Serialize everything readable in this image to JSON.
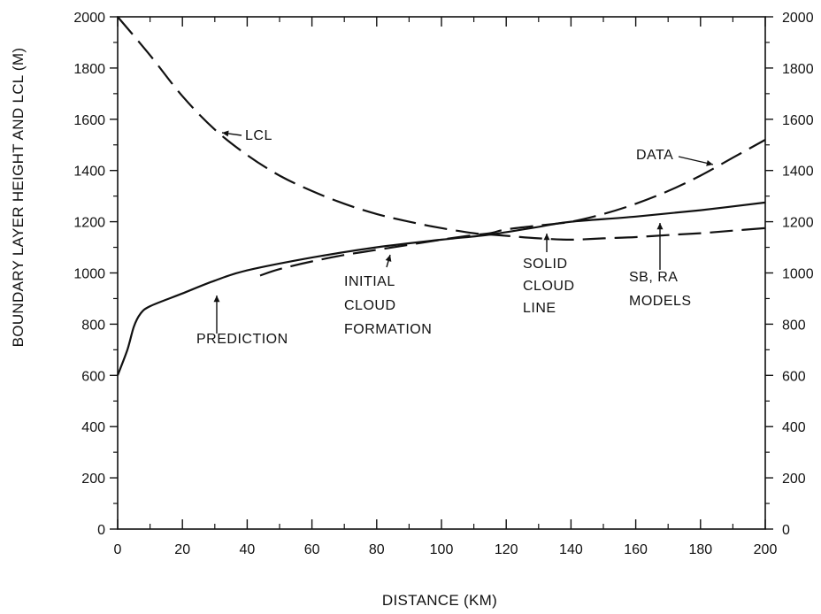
{
  "chart_data": {
    "type": "line",
    "title": "",
    "xlabel": "DISTANCE (KM)",
    "ylabel": "BOUNDARY LAYER HEIGHT AND LCL (M)",
    "xlim": [
      0,
      200
    ],
    "ylim": [
      0,
      2000
    ],
    "x_ticks": [
      0,
      20,
      40,
      60,
      80,
      100,
      120,
      140,
      160,
      180,
      200
    ],
    "y_ticks": [
      0,
      200,
      400,
      600,
      800,
      1000,
      1200,
      1400,
      1600,
      1800,
      2000
    ],
    "grid": false,
    "legend": "none",
    "series": [
      {
        "name": "LCL",
        "style": "dashed",
        "x": [
          0,
          10,
          20,
          30,
          40,
          50,
          60,
          70,
          80,
          90,
          100,
          110,
          115,
          120,
          130,
          140,
          150,
          160,
          170,
          180,
          190,
          200
        ],
        "y": [
          2000,
          1850,
          1690,
          1560,
          1460,
          1380,
          1320,
          1270,
          1230,
          1200,
          1175,
          1155,
          1150,
          1145,
          1135,
          1130,
          1135,
          1140,
          1148,
          1155,
          1165,
          1175
        ]
      },
      {
        "name": "PREDICTION",
        "style": "solid",
        "x": [
          0,
          3,
          5,
          7,
          10,
          20,
          30,
          40,
          60,
          80,
          100,
          115,
          130,
          140,
          160,
          180,
          200
        ],
        "y": [
          600,
          700,
          790,
          840,
          870,
          920,
          970,
          1010,
          1060,
          1100,
          1130,
          1150,
          1180,
          1200,
          1220,
          1245,
          1275
        ]
      },
      {
        "name": "DATA",
        "style": "dashed",
        "x": [
          44,
          50,
          60,
          70,
          80,
          90,
          100,
          110,
          115,
          120,
          130,
          140,
          150,
          160,
          170,
          180,
          190,
          200
        ],
        "y": [
          990,
          1015,
          1045,
          1070,
          1090,
          1110,
          1130,
          1148,
          1155,
          1170,
          1185,
          1200,
          1230,
          1270,
          1320,
          1380,
          1450,
          1520
        ]
      }
    ],
    "annotations": [
      "LCL",
      "DATA",
      "INITIAL",
      "CLOUD",
      "FORMATION",
      "SOLID",
      "CLOUD",
      "LINE",
      "SB, RA",
      "MODELS",
      "PREDICTION"
    ],
    "colors": {
      "ink": "#111111",
      "background": "#ffffff"
    }
  }
}
